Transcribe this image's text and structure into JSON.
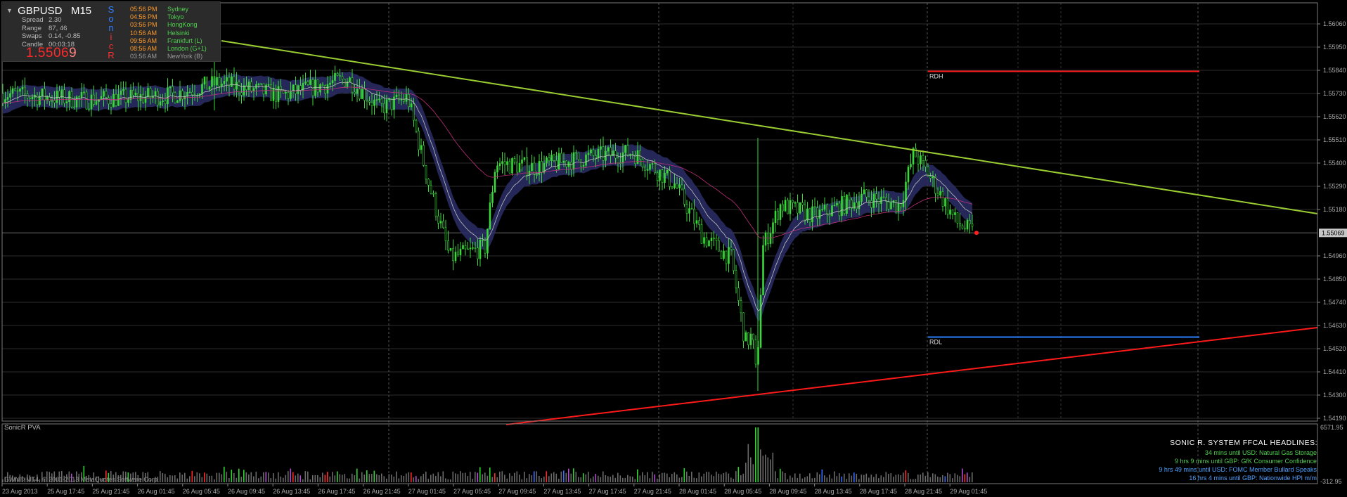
{
  "window": {
    "symbol": "GBPUSD",
    "timeframe": "M15",
    "current_price_main": "1.5506",
    "current_price_last": "9",
    "current_price_tag": "1.55069"
  },
  "stats": {
    "labels": [
      "Spread",
      "Range",
      "Swaps",
      "Candle"
    ],
    "values": [
      "2.30",
      "87, 46",
      "0.14, -0.85",
      "00:03:18"
    ]
  },
  "sonic_letters": [
    "S",
    "o",
    "n",
    "i",
    "c",
    "R"
  ],
  "sessions": [
    {
      "time": "05:56 PM",
      "name": "Sydney",
      "open": true
    },
    {
      "time": "04:56 PM",
      "name": "Tokyo",
      "open": true
    },
    {
      "time": "03:56 PM",
      "name": "HongKong",
      "open": true
    },
    {
      "time": "10:56 AM",
      "name": "Helsinki",
      "open": true
    },
    {
      "time": "09:56 AM",
      "name": "Frankfurt  (L)",
      "open": true
    },
    {
      "time": "08:56 AM",
      "name": "London  (G+1)",
      "open": true
    },
    {
      "time": "03:56 AM",
      "name": "NewYork  (B)",
      "open": false
    }
  ],
  "price_axis": [
    "1.56060",
    "1.55950",
    "1.55840",
    "1.55730",
    "1.55620",
    "1.55510",
    "1.55400",
    "1.55290",
    "1.55180",
    "1.54960",
    "1.54850",
    "1.54740",
    "1.54630",
    "1.54520",
    "1.54410",
    "1.54300",
    "1.54190"
  ],
  "time_axis": [
    "23 Aug 2013",
    "25 Aug 17:45",
    "25 Aug 21:45",
    "26 Aug 01:45",
    "26 Aug 05:45",
    "26 Aug 09:45",
    "26 Aug 13:45",
    "26 Aug 17:45",
    "26 Aug 21:45",
    "27 Aug 01:45",
    "27 Aug 05:45",
    "27 Aug 09:45",
    "27 Aug 13:45",
    "27 Aug 17:45",
    "27 Aug 21:45",
    "28 Aug 01:45",
    "28 Aug 05:45",
    "28 Aug 09:45",
    "28 Aug 13:45",
    "28 Aug 17:45",
    "28 Aug 21:45",
    "29 Aug 01:45"
  ],
  "levels": {
    "rdh": "RDH",
    "rdl": "RDL"
  },
  "volume_panel": {
    "label": "SonicR PVA",
    "max_label": "6571.95",
    "min_label": "-312.95"
  },
  "copyright": "GWN© MT4, © 2001-2013 MetaQuotes Software Corp.",
  "headlines": {
    "title": "SONIC R. SYSTEM  FFCAL HEADLINES:",
    "items": [
      {
        "text": "34 mins until USD: Natural Gas Storage",
        "color": "#4fcf4f"
      },
      {
        "text": "9 hrs 9 mins until GBP: GfK Consumer Confidence",
        "color": "#4fcf4f"
      },
      {
        "text": "9 hrs 49 mins until USD: FOMC Member Bullard Speaks",
        "color": "#4fa0ff"
      },
      {
        "text": "16 hrs 4 mins until GBP: Nationwide HPI m/m",
        "color": "#4fa0ff"
      }
    ]
  },
  "colors": {
    "bull": "#3ad83a",
    "bear": "#3ad83a",
    "ema_band": "#2a2e66",
    "ema_mid": "#c0c0c0",
    "ema_long": "#c0307a",
    "trend_upper": "#9acd32",
    "trend_lower": "#ff1a1a",
    "rdh": "#ff1a1a",
    "rdl": "#2a7fff"
  }
}
